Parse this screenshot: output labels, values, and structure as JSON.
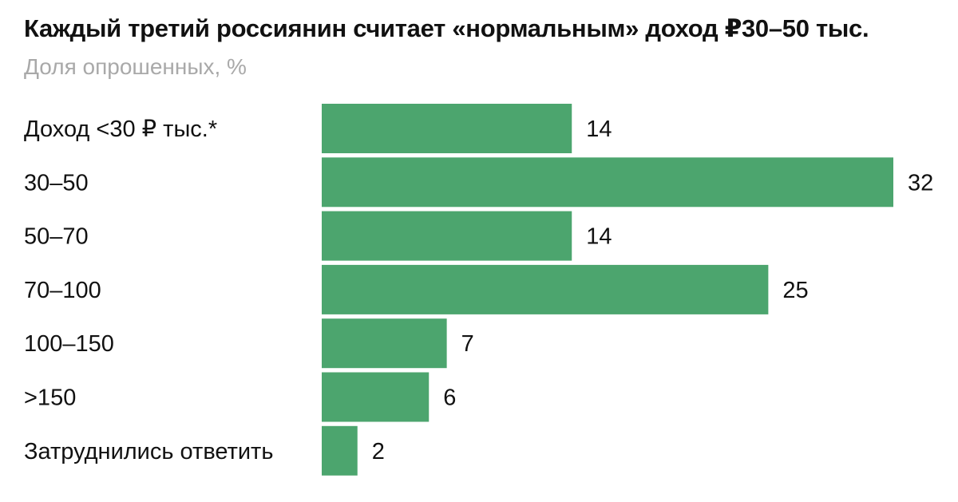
{
  "chart_data": {
    "type": "bar",
    "orientation": "horizontal",
    "title": "Каждый третий россиянин считает «нормальным» доход ₽30–50 тыс.",
    "subtitle": "Доля опрошенных, %",
    "categories": [
      "Доход <30 ₽ тыс.*",
      "30–50",
      "50–70",
      "70–100",
      "100–150",
      ">150",
      "Затруднились ответить"
    ],
    "values": [
      14,
      32,
      14,
      25,
      7,
      6,
      2
    ],
    "xlim": [
      0,
      32
    ],
    "grid": false,
    "legend": "none",
    "bar_color": "#4ca56e"
  }
}
